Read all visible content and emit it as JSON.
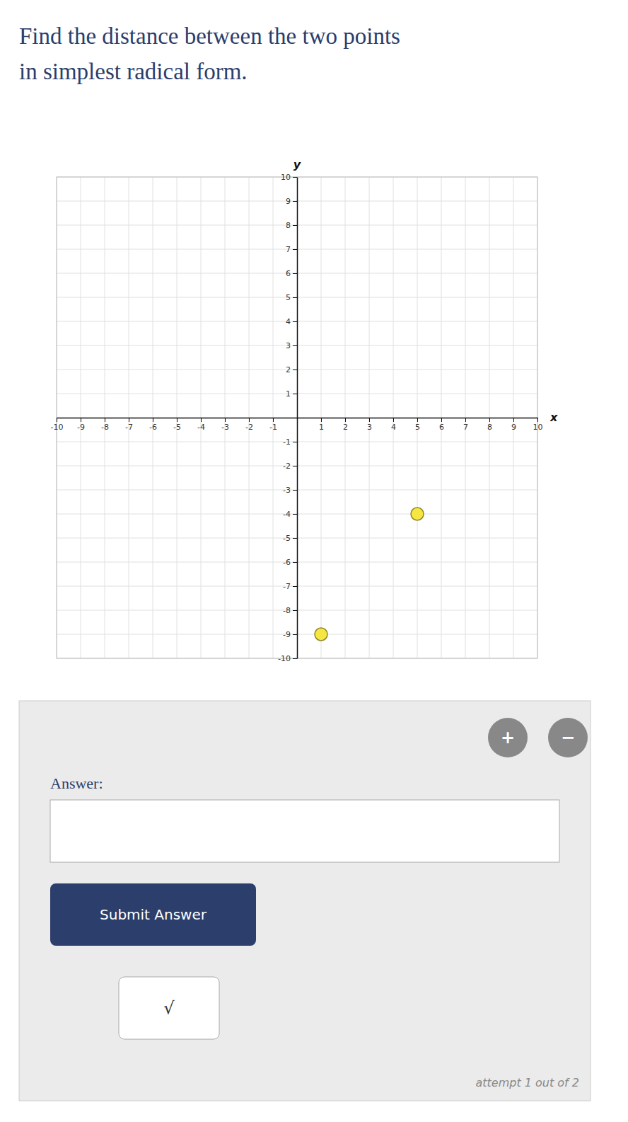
{
  "chart_data": {
    "type": "scatter",
    "title": "Find the distance between the two points",
    "subtitle": "in simplest radical form.",
    "xlabel": "x",
    "ylabel": "y",
    "x": [
      5,
      1
    ],
    "values": [
      -4,
      -9
    ],
    "color": "#f5e642",
    "xlim": [
      -10,
      10
    ],
    "ylim": [
      -10,
      10
    ],
    "xticks": [
      -10,
      -9,
      -8,
      -7,
      -6,
      -5,
      -4,
      -3,
      -2,
      -1,
      1,
      2,
      3,
      4,
      5,
      6,
      7,
      8,
      9,
      10
    ],
    "yticks": [
      -10,
      -9,
      -8,
      -7,
      -6,
      -5,
      -4,
      -3,
      -2,
      -1,
      1,
      2,
      3,
      4,
      5,
      6,
      7,
      8,
      9,
      10
    ],
    "grid": true,
    "annotations": [
      "Answer:",
      "Submit Answer",
      "√",
      "attempt 1 out of 2",
      "+",
      "−"
    ]
  }
}
